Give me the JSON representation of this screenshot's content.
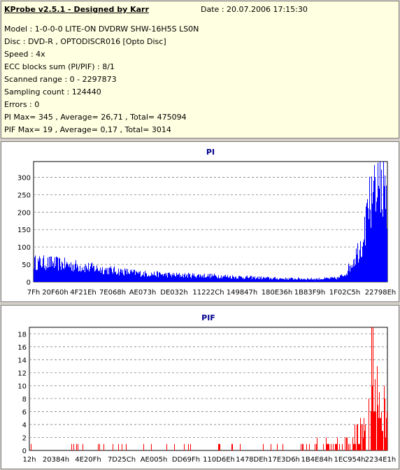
{
  "header": {
    "app_title": "KProbe v2.5.1 - Designed by Karr",
    "date": "Date : 20.07.2006 17:15:30"
  },
  "info_lines": [
    "Model : 1-0-0-0 LITE-ON DVDRW SHW-16H5S  LS0N",
    "Disc : DVD-R , OPTODISCR016 [Opto Disc]",
    "Speed : 4x",
    "ECC blocks sum (PI/PIF) : 8/1",
    "Scanned range : 0 - 2297873",
    "Sampling count : 124440",
    "Errors : 0",
    "PI Max= 345 , Average= 26,71 , Total= 475094",
    "PIF Max= 19 , Average= 0,17 , Total= 3014"
  ],
  "colors": {
    "pi": "#0000ff",
    "pif": "#ff0000",
    "title": "#00008b",
    "grid": "#808080"
  },
  "chart_data": [
    {
      "type": "bar",
      "title": "PI",
      "ylim": [
        0,
        345
      ],
      "yticks": [
        "0",
        "50",
        "100",
        "150",
        "200",
        "250",
        "300"
      ],
      "xticks": [
        "7Fh",
        "20F60h",
        "4F21Eh",
        "7E068h",
        "AE073h",
        "DE032h",
        "11222Ch",
        "149847h",
        "180E36h",
        "1B83F9h",
        "1F02C5h",
        "22798Eh"
      ],
      "grid": "horizontal dashed",
      "profile": [
        [
          0,
          60
        ],
        [
          0.05,
          58
        ],
        [
          0.1,
          52
        ],
        [
          0.2,
          38
        ],
        [
          0.3,
          26
        ],
        [
          0.4,
          21
        ],
        [
          0.5,
          19
        ],
        [
          0.6,
          14
        ],
        [
          0.7,
          10
        ],
        [
          0.8,
          9
        ],
        [
          0.86,
          12
        ],
        [
          0.88,
          25
        ],
        [
          0.9,
          60
        ],
        [
          0.93,
          130
        ],
        [
          0.95,
          220
        ],
        [
          0.97,
          300
        ],
        [
          0.99,
          260
        ],
        [
          1,
          200
        ]
      ],
      "max": 345
    },
    {
      "type": "bar",
      "title": "PIF",
      "ylim": [
        0,
        19
      ],
      "yticks": [
        "0",
        "2",
        "4",
        "6",
        "8",
        "10",
        "12",
        "14",
        "16",
        "18"
      ],
      "xticks": [
        "12h",
        "20384h",
        "4E20Fh",
        "7D25Ch",
        "AE005h",
        "DD69Fh",
        "110D6Eh",
        "1478DEh",
        "17E3D6h",
        "1B4E84h",
        "1EC954h",
        "2234E1h"
      ],
      "grid": "horizontal dashed",
      "profile": [
        [
          0,
          0.3
        ],
        [
          0.5,
          0.3
        ],
        [
          0.75,
          0.6
        ],
        [
          0.8,
          1.2
        ],
        [
          0.85,
          0.8
        ],
        [
          0.9,
          1.5
        ],
        [
          0.93,
          3
        ],
        [
          0.96,
          7
        ],
        [
          0.98,
          6
        ],
        [
          1,
          4
        ]
      ],
      "max": 19
    }
  ]
}
